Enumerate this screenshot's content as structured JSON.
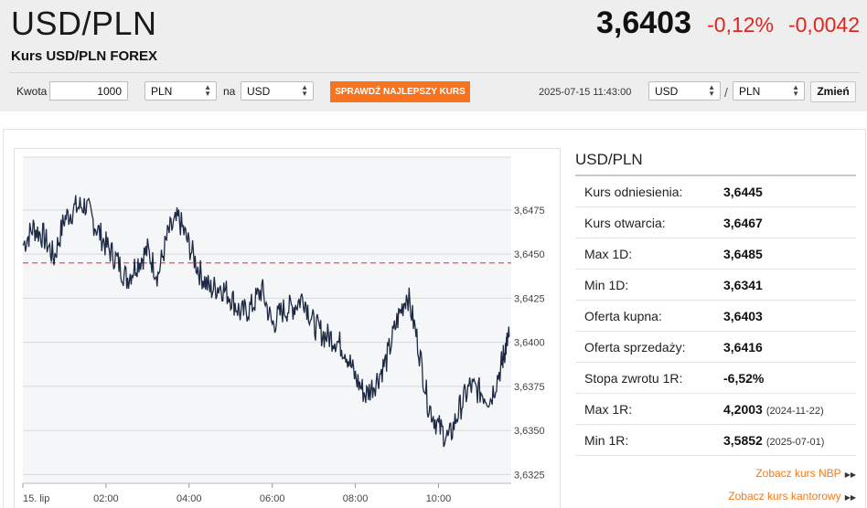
{
  "header": {
    "pair": "USD/PLN",
    "subtitle": "Kurs USD/PLN FOREX",
    "price": "3,6403",
    "change_pct": "-0,12%",
    "change_abs": "-0,0042",
    "change_color": "#e2251c"
  },
  "converter": {
    "amount_label": "Kwota",
    "amount_value": "1000",
    "from_currency": "PLN",
    "to_label": "na",
    "to_currency": "USD",
    "check_button": "SPRAWDŹ NAJLEPSZY KURS",
    "check_button_color": "#f7731d",
    "timestamp": "2025-07-15 11:43:00",
    "pair_base": "USD",
    "pair_separator": "/",
    "pair_quote": "PLN",
    "swap_button": "Zmień"
  },
  "sidebar": {
    "title": "USD/PLN",
    "stats": [
      {
        "label": "Kurs odniesienia:",
        "value": "3,6445",
        "date": ""
      },
      {
        "label": "Kurs otwarcia:",
        "value": "3,6467",
        "date": ""
      },
      {
        "label": "Max 1D:",
        "value": "3,6485",
        "date": ""
      },
      {
        "label": "Min 1D:",
        "value": "3,6341",
        "date": ""
      },
      {
        "label": "Oferta kupna:",
        "value": "3,6403",
        "date": ""
      },
      {
        "label": "Oferta sprzedaży:",
        "value": "3,6416",
        "date": ""
      },
      {
        "label": "Stopa zwrotu 1R:",
        "value": "-6,52%",
        "date": ""
      },
      {
        "label": "Max 1R:",
        "value": "4,2003",
        "date": "(2024-11-22)"
      },
      {
        "label": "Min 1R:",
        "value": "3,5852",
        "date": "(2025-07-01)"
      }
    ],
    "link_nbp": "Zobacz kurs NBP",
    "link_kantor": "Zobacz kurs kantorowy",
    "link_color": "#f07a1a"
  },
  "chart_data": {
    "type": "line",
    "title": "",
    "xlabel": "",
    "ylabel": "",
    "x_ticks": [
      "15. lip",
      "02:00",
      "04:00",
      "06:00",
      "08:00",
      "10:00"
    ],
    "y_ticks": [
      "3,6475",
      "3,6450",
      "3,6425",
      "3,6400",
      "3,6375",
      "3,6350",
      "3,6325"
    ],
    "ylim": [
      3.632,
      3.6505
    ],
    "xlim": [
      0,
      11.75
    ],
    "reference_line": 3.6445,
    "reference_color": "#e8525a",
    "line_color": "#1e2a44",
    "grid": true,
    "series": [
      {
        "name": "",
        "x": [
          0.0,
          0.25,
          0.5,
          0.75,
          1.0,
          1.25,
          1.5,
          1.75,
          2.0,
          2.25,
          2.5,
          2.75,
          3.0,
          3.25,
          3.5,
          3.75,
          4.0,
          4.25,
          4.5,
          4.75,
          5.0,
          5.25,
          5.5,
          5.75,
          6.0,
          6.25,
          6.5,
          6.75,
          7.0,
          7.25,
          7.5,
          7.75,
          8.0,
          8.25,
          8.5,
          8.75,
          9.0,
          9.25,
          9.5,
          9.75,
          10.0,
          10.25,
          10.5,
          10.75,
          11.0,
          11.25,
          11.5,
          11.6,
          11.7
        ],
        "values": [
          3.6455,
          3.6465,
          3.646,
          3.6448,
          3.647,
          3.6476,
          3.6478,
          3.6466,
          3.6455,
          3.6447,
          3.6436,
          3.6445,
          3.6452,
          3.6438,
          3.6462,
          3.647,
          3.6455,
          3.644,
          3.643,
          3.6432,
          3.6426,
          3.6416,
          3.642,
          3.643,
          3.641,
          3.6418,
          3.642,
          3.6426,
          3.641,
          3.6404,
          3.6402,
          3.6396,
          3.638,
          3.637,
          3.6378,
          3.639,
          3.6412,
          3.6428,
          3.64,
          3.6365,
          3.6352,
          3.6345,
          3.6362,
          3.6375,
          3.6372,
          3.6368,
          3.6386,
          3.6396,
          3.6403
        ]
      }
    ]
  }
}
